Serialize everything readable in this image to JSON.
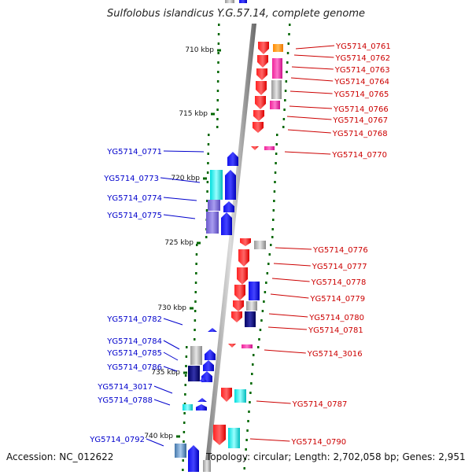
{
  "title": "Sulfolobus islandicus Y.G.57.14, complete genome",
  "accession": "Accession: NC_012622",
  "topology": "Topology: circular; Length: 2,702,058 bp; Genes: 2,951",
  "colors": {
    "left_label": "#0000cc",
    "right_label": "#cc0000",
    "axis": "#999999",
    "tick": "#006600"
  },
  "kbp_ticks": [
    "710 kbp",
    "715 kbp",
    "720 kbp",
    "725 kbp",
    "730 kbp",
    "735 kbp",
    "740 kbp"
  ],
  "left_genes": [
    "YG5714_0771",
    "YG5714_0773",
    "YG5714_0774",
    "YG5714_0775",
    "YG5714_0782",
    "YG5714_0784",
    "YG5714_0785",
    "YG5714_0786",
    "YG5714_3017",
    "YG5714_0788",
    "YG5714_0792"
  ],
  "right_genes": [
    "YG5714_0761",
    "YG5714_0762",
    "YG5714_0763",
    "YG5714_0764",
    "YG5714_0765",
    "YG5714_0766",
    "YG5714_0767",
    "YG5714_0768",
    "YG5714_0770",
    "YG5714_0776",
    "YG5714_0777",
    "YG5714_0778",
    "YG5714_0779",
    "YG5714_0780",
    "YG5714_0781",
    "YG5714_3016",
    "YG5714_0787",
    "YG5714_0790"
  ]
}
